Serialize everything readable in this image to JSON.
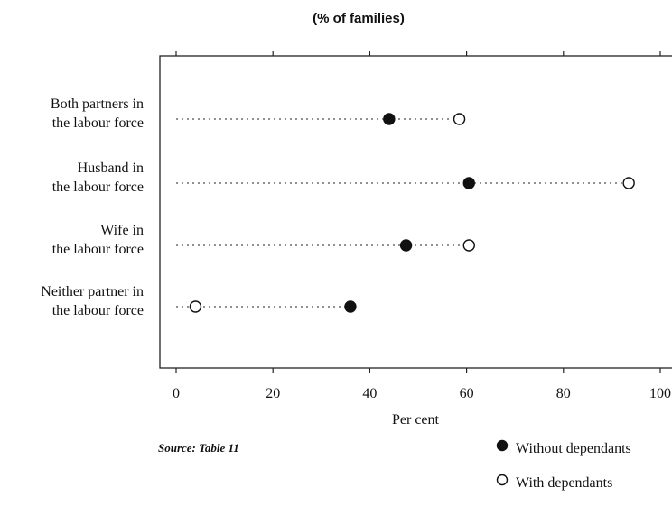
{
  "chart_data": {
    "type": "dot",
    "title": "(% of families)",
    "xlabel": "Per cent",
    "xlim": [
      0,
      100
    ],
    "xticks": [
      0,
      20,
      40,
      60,
      80,
      100
    ],
    "categories": [
      [
        "Both partners in",
        "the labour force"
      ],
      [
        "Husband in",
        "the labour force"
      ],
      [
        "Wife in",
        "the labour force"
      ],
      [
        "Neither partner in",
        "the labour force"
      ]
    ],
    "series": [
      {
        "name": "Without dependants",
        "marker": "filled-circle",
        "values": [
          44,
          60.5,
          47.5,
          36
        ]
      },
      {
        "name": "With dependants",
        "marker": "open-circle",
        "values": [
          58.5,
          93.5,
          60.5,
          4
        ]
      }
    ],
    "source": "Source: Table 11",
    "legend_position": "bottom-right"
  }
}
